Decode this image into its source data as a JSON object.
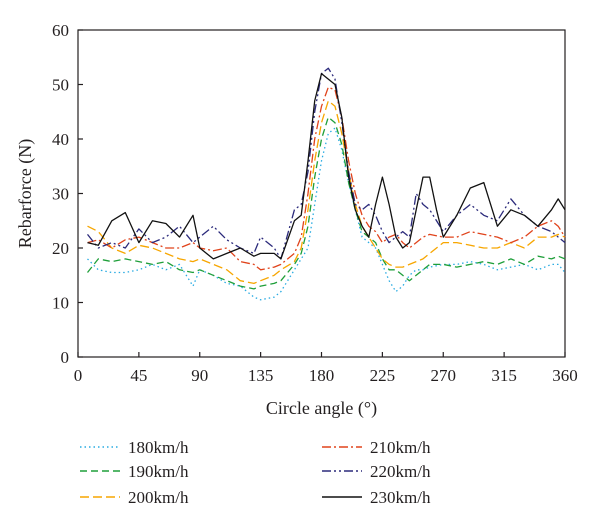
{
  "chart_data": {
    "type": "line",
    "title": "",
    "xlabel": "Circle angle (°)",
    "ylabel": "Rebarforce (N)",
    "xlim": [
      0,
      360
    ],
    "ylim": [
      0,
      60
    ],
    "xticks": [
      "0",
      "45",
      "90",
      "135",
      "180",
      "225",
      "270",
      "315",
      "360"
    ],
    "yticks": [
      "0",
      "10",
      "20",
      "30",
      "40",
      "50",
      "60"
    ],
    "grid": false,
    "legend_position": "bottom",
    "series": [
      {
        "name": "180km/h",
        "color": "#29abe2",
        "dash": "dotted",
        "x": [
          7,
          15,
          25,
          35,
          45,
          55,
          65,
          75,
          85,
          90,
          100,
          110,
          120,
          130,
          135,
          145,
          150,
          160,
          165,
          170,
          175,
          180,
          185,
          190,
          195,
          200,
          205,
          210,
          215,
          220,
          225,
          230,
          235,
          240,
          245,
          250,
          255,
          260,
          270,
          280,
          290,
          300,
          310,
          320,
          330,
          340,
          350,
          355,
          360
        ],
        "y": [
          18,
          16,
          15.5,
          15.5,
          16,
          17,
          16,
          17,
          13,
          16,
          15,
          13.5,
          13,
          11,
          10.5,
          11,
          12,
          16,
          18,
          20,
          28,
          36,
          41,
          42,
          38,
          32,
          27,
          22,
          21,
          20,
          17,
          14,
          12,
          13,
          15,
          16,
          16,
          16.5,
          17,
          17,
          17.5,
          17,
          16,
          16.5,
          17,
          16,
          17,
          17,
          15.5
        ]
      },
      {
        "name": "190km/h",
        "color": "#1f9f3a",
        "dash": "dashed",
        "x": [
          7,
          15,
          25,
          35,
          45,
          55,
          65,
          75,
          85,
          90,
          100,
          110,
          120,
          130,
          135,
          145,
          150,
          160,
          165,
          170,
          175,
          180,
          185,
          190,
          195,
          200,
          205,
          210,
          215,
          220,
          225,
          230,
          235,
          240,
          245,
          250,
          255,
          260,
          270,
          280,
          290,
          300,
          310,
          320,
          330,
          340,
          350,
          355,
          360
        ],
        "y": [
          15.5,
          18,
          17.5,
          18,
          17.5,
          17,
          17.5,
          16,
          15.5,
          16,
          15,
          14,
          13,
          12.5,
          13,
          13.5,
          14,
          17,
          19,
          24,
          33,
          40,
          44,
          43,
          39,
          32,
          27,
          23,
          22,
          21,
          18,
          16,
          16,
          15,
          14,
          15,
          16,
          17,
          17,
          16.5,
          17,
          17.5,
          17,
          18,
          17,
          18.5,
          18,
          18.5,
          18
        ]
      },
      {
        "name": "200km/h",
        "color": "#f7a600",
        "dash": "dashed-long",
        "x": [
          7,
          15,
          25,
          35,
          45,
          55,
          65,
          75,
          85,
          90,
          100,
          110,
          120,
          130,
          135,
          145,
          150,
          160,
          165,
          170,
          175,
          180,
          185,
          190,
          195,
          200,
          205,
          210,
          215,
          220,
          225,
          230,
          235,
          240,
          245,
          250,
          255,
          260,
          270,
          280,
          290,
          300,
          310,
          320,
          330,
          340,
          350,
          355,
          360
        ],
        "y": [
          24,
          23,
          20,
          19,
          20.5,
          20,
          19,
          18,
          17.5,
          18,
          17,
          16,
          14,
          13.5,
          14,
          15,
          16,
          17.5,
          20,
          27,
          36,
          43,
          47,
          46,
          41,
          34,
          28,
          24,
          22,
          20,
          18,
          17,
          16.5,
          16.5,
          17,
          17.5,
          18,
          19,
          21,
          21,
          20.5,
          20,
          20,
          21,
          20,
          22,
          22,
          22.5,
          22
        ]
      },
      {
        "name": "210km/h",
        "color": "#e0431b",
        "dash": "dashdot",
        "x": [
          7,
          15,
          25,
          35,
          45,
          55,
          65,
          75,
          85,
          90,
          100,
          110,
          120,
          130,
          135,
          145,
          150,
          160,
          165,
          170,
          175,
          180,
          185,
          190,
          195,
          200,
          205,
          210,
          215,
          220,
          225,
          230,
          235,
          240,
          245,
          250,
          255,
          260,
          270,
          280,
          290,
          300,
          310,
          320,
          330,
          340,
          350,
          355,
          360
        ],
        "y": [
          21,
          21.5,
          20,
          21.5,
          22,
          21,
          20,
          20,
          21,
          20,
          19.5,
          20,
          17.5,
          17,
          16,
          16.5,
          17,
          19,
          22,
          30,
          40,
          46,
          49.5,
          49,
          44,
          36,
          30,
          26,
          24,
          23,
          21,
          22,
          22.5,
          21,
          20,
          21,
          22,
          22.5,
          22,
          22,
          23,
          22.5,
          22,
          21,
          22,
          24,
          25,
          24,
          22
        ]
      },
      {
        "name": "220km/h",
        "color": "#2b2a7b",
        "dash": "dashdotdot",
        "x": [
          7,
          15,
          25,
          35,
          45,
          55,
          65,
          75,
          85,
          90,
          100,
          110,
          120,
          130,
          135,
          145,
          150,
          160,
          165,
          170,
          175,
          180,
          185,
          190,
          195,
          200,
          205,
          210,
          215,
          220,
          225,
          230,
          235,
          240,
          245,
          250,
          255,
          260,
          270,
          280,
          290,
          300,
          310,
          320,
          330,
          340,
          350,
          355,
          360
        ],
        "y": [
          22.5,
          20,
          21,
          20,
          23.5,
          21,
          22,
          24,
          21,
          22,
          24,
          21.5,
          20,
          19,
          22,
          20,
          18,
          27,
          28,
          34,
          45,
          52,
          53,
          51,
          43,
          34,
          28,
          27,
          28,
          26,
          23,
          21,
          22,
          23,
          22,
          30,
          28,
          27,
          23,
          26,
          28,
          26,
          25,
          29,
          26,
          24,
          23,
          22,
          21
        ]
      },
      {
        "name": "230km/h",
        "color": "#111111",
        "dash": "solid",
        "x": [
          7,
          15,
          25,
          35,
          45,
          55,
          65,
          75,
          85,
          90,
          100,
          110,
          120,
          130,
          135,
          145,
          150,
          160,
          165,
          170,
          175,
          180,
          185,
          190,
          195,
          200,
          205,
          210,
          215,
          220,
          225,
          230,
          235,
          240,
          245,
          250,
          255,
          260,
          265,
          270,
          280,
          290,
          300,
          310,
          320,
          330,
          340,
          350,
          355,
          360
        ],
        "y": [
          21,
          20.5,
          25,
          26.5,
          21,
          25,
          24.5,
          22,
          26,
          20,
          18,
          19,
          20,
          18.5,
          19,
          19,
          18,
          25,
          26,
          36,
          47,
          52,
          51,
          50,
          44,
          33,
          27,
          24,
          22,
          28,
          33,
          28,
          22,
          20,
          21,
          27,
          33,
          33,
          27,
          22,
          26,
          31,
          32,
          24,
          27,
          26,
          24,
          27,
          29,
          27
        ]
      }
    ]
  }
}
